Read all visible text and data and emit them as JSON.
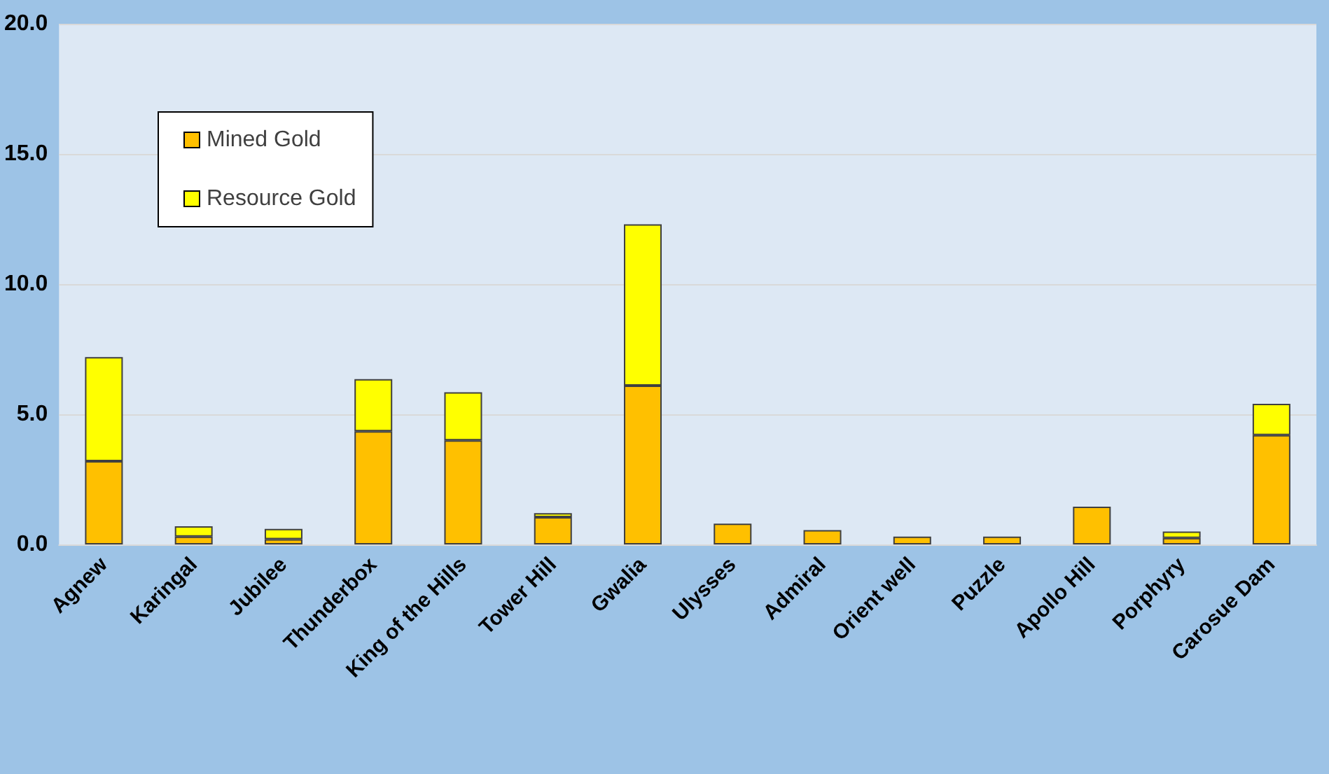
{
  "chart_data": {
    "type": "bar",
    "stacked": true,
    "categories": [
      "Agnew",
      "Karingal",
      "Jubilee",
      "Thunderbox",
      "King of the Hills",
      "Tower Hill",
      "Gwalia",
      "Ulysses",
      "Admiral",
      "Orient well",
      "Puzzle",
      "Apollo Hill",
      "Porphyry",
      "Carosue Dam"
    ],
    "series": [
      {
        "name": "Mined Gold",
        "color": "#ffc000",
        "values": [
          3.2,
          0.3,
          0.2,
          4.35,
          4.0,
          1.05,
          6.1,
          0.8,
          0.55,
          0.3,
          0.3,
          1.45,
          0.25,
          4.2
        ]
      },
      {
        "name": "Resource Gold",
        "color": "#ffff00",
        "values": [
          4.0,
          0.4,
          0.4,
          2.0,
          1.85,
          0.15,
          6.2,
          null,
          null,
          null,
          null,
          null,
          0.25,
          1.2
        ]
      }
    ],
    "ylim": [
      0,
      20
    ],
    "yticks": [
      {
        "value": 0,
        "label": "0.0"
      },
      {
        "value": 5,
        "label": "5.0"
      },
      {
        "value": 10,
        "label": "10.0"
      },
      {
        "value": 15,
        "label": "15.0"
      },
      {
        "value": 20,
        "label": "20.0"
      }
    ],
    "grid": "y",
    "legend": "top left"
  }
}
